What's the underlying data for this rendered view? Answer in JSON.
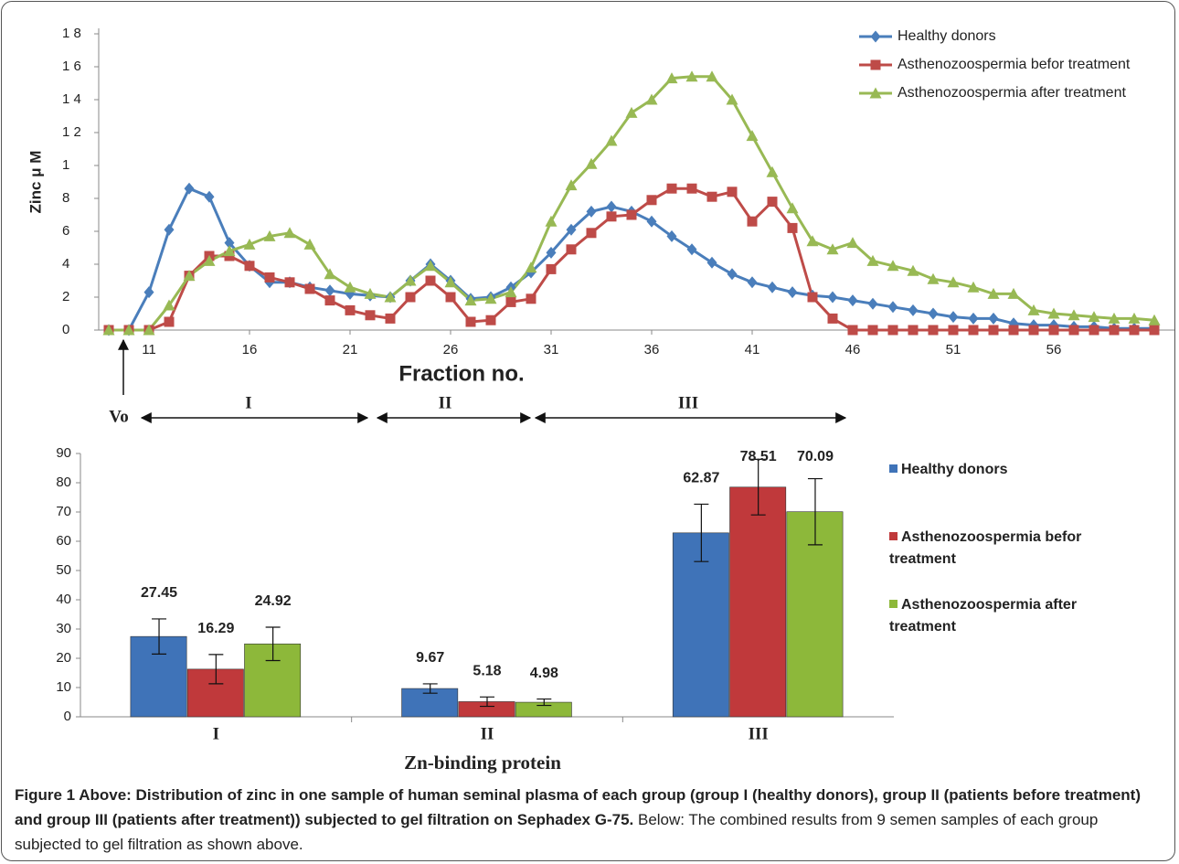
{
  "chart_data": [
    {
      "type": "line",
      "y_label": "Zinc μ M",
      "x_label": "Fraction no.",
      "x": [
        9,
        10,
        11,
        12,
        13,
        14,
        15,
        16,
        17,
        18,
        19,
        20,
        21,
        22,
        23,
        24,
        25,
        26,
        27,
        28,
        29,
        30,
        31,
        32,
        33,
        34,
        35,
        36,
        37,
        38,
        39,
        40,
        41,
        42,
        43,
        44,
        45,
        46,
        47,
        48,
        49,
        50,
        51,
        52,
        53,
        54,
        55,
        56,
        57,
        58,
        59,
        60,
        61
      ],
      "xlim": [
        8.5,
        62
      ],
      "xticks": [
        11,
        16,
        21,
        26,
        31,
        36,
        41,
        46,
        51,
        56
      ],
      "ylim": [
        0,
        18
      ],
      "yticks": [
        0,
        2,
        4,
        6,
        8,
        {
          "value": 10,
          "label": "1"
        },
        {
          "value": 12,
          "label": "1 2"
        },
        {
          "value": 14,
          "label": "1 4"
        },
        {
          "value": 16,
          "label": "1 6"
        },
        {
          "value": 18,
          "label": "1 8"
        }
      ],
      "legend": "top-right",
      "series": [
        {
          "name": "Healthy donors",
          "color": "#4a7ebb",
          "marker": "diamond",
          "values": [
            0,
            0,
            2.3,
            6.1,
            8.6,
            8.1,
            5.3,
            3.9,
            2.9,
            2.9,
            2.6,
            2.4,
            2.2,
            2.1,
            2.0,
            3.0,
            4.0,
            3.0,
            1.9,
            2.0,
            2.6,
            3.5,
            4.7,
            6.1,
            7.2,
            7.5,
            7.2,
            6.6,
            5.7,
            4.9,
            4.1,
            3.4,
            2.9,
            2.6,
            2.3,
            2.1,
            2.0,
            1.8,
            1.6,
            1.4,
            1.2,
            1.0,
            0.8,
            0.7,
            0.7,
            0.4,
            0.3,
            0.3,
            0.2,
            0.2,
            0.1,
            0.1,
            0.1
          ]
        },
        {
          "name": "Asthenozoospermia befor treatment",
          "color": "#be4b48",
          "marker": "square",
          "values": [
            0,
            0,
            0,
            0.5,
            3.3,
            4.5,
            4.5,
            3.9,
            3.2,
            2.9,
            2.5,
            1.8,
            1.2,
            0.9,
            0.7,
            2.0,
            3.0,
            2.0,
            0.5,
            0.6,
            1.7,
            1.9,
            3.7,
            4.9,
            5.9,
            6.9,
            7.0,
            7.9,
            8.6,
            8.6,
            8.1,
            8.4,
            6.6,
            7.8,
            6.2,
            2.0,
            0.7,
            0,
            0,
            0,
            0,
            0,
            0,
            0,
            0,
            0,
            0,
            0,
            0,
            0,
            0,
            0,
            0
          ]
        },
        {
          "name": "Asthenozoospermia after treatment",
          "color": "#98b954",
          "marker": "triangle",
          "values": [
            0,
            0,
            0,
            1.5,
            3.3,
            4.2,
            4.8,
            5.2,
            5.7,
            5.9,
            5.2,
            3.4,
            2.6,
            2.2,
            2.0,
            3.0,
            3.9,
            2.9,
            1.8,
            1.9,
            2.3,
            3.8,
            6.6,
            8.8,
            10.1,
            11.5,
            13.2,
            14.0,
            15.3,
            15.4,
            15.4,
            14.0,
            11.8,
            9.6,
            7.4,
            5.4,
            4.9,
            5.3,
            4.2,
            3.9,
            3.6,
            3.1,
            2.9,
            2.6,
            2.2,
            2.2,
            1.2,
            1.0,
            0.9,
            0.8,
            0.7,
            0.7,
            0.6
          ]
        }
      ],
      "annotations": {
        "void": "Vo",
        "regions": [
          "I",
          "II",
          "III"
        ]
      }
    },
    {
      "type": "bar",
      "x_label": "Zn-binding protein",
      "categories": [
        "I",
        "II",
        "III"
      ],
      "ylim": [
        0,
        90
      ],
      "yticks": [
        0,
        10,
        20,
        30,
        40,
        50,
        60,
        70,
        80,
        90
      ],
      "legend": "right",
      "series": [
        {
          "name": "Healthy donors",
          "color": "#3f73b8",
          "values": [
            27.45,
            9.67,
            62.87
          ],
          "errors": [
            6,
            1.6,
            9.8
          ]
        },
        {
          "name": "Asthenozoospermia befor treatment",
          "color": "#c0393b",
          "values": [
            16.29,
            5.18,
            78.51
          ],
          "errors": [
            5,
            1.6,
            9.5
          ]
        },
        {
          "name": "Asthenozoospermia after treatment",
          "color": "#8db83a",
          "values": [
            24.92,
            4.98,
            70.09
          ],
          "errors": [
            5.7,
            1.1,
            11.3
          ]
        }
      ]
    }
  ],
  "caption": {
    "bold": "Figure 1 Above: Distribution of zinc in one sample of human seminal plasma of each group (group I (healthy donors), group II (patients before treatment) and group III (patients after treatment)) subjected to gel filtration on Sephadex G-75.",
    "text": "Below: The combined results from 9 semen samples of each group subjected to gel filtration as shown above."
  }
}
